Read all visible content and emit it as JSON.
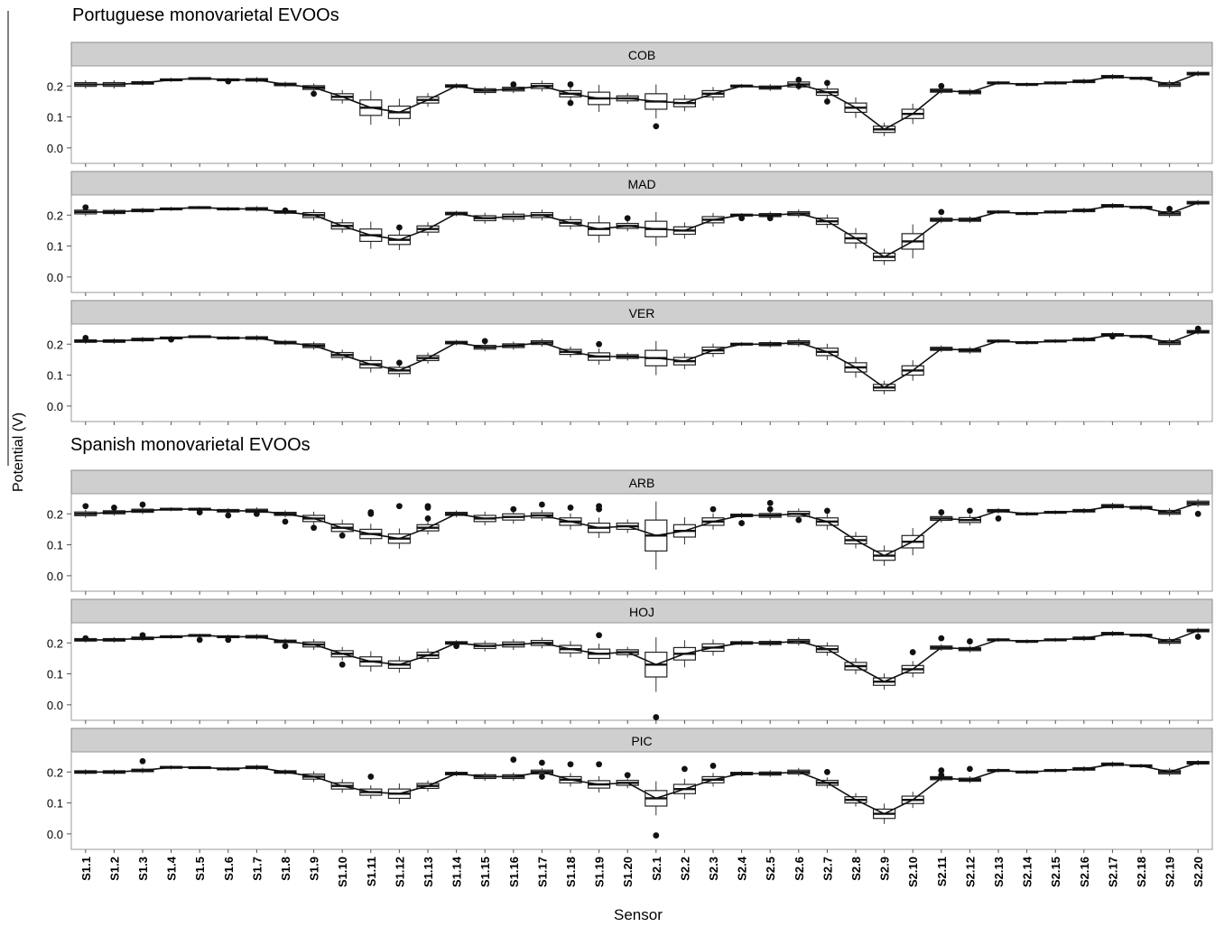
{
  "group_titles": [
    "Portuguese monovarietal EVOOs",
    "Spanish monovarietal EVOOs"
  ],
  "axis": {
    "ylabel": "Potential (V)",
    "xlabel": "Sensor",
    "yticks": [
      0.0,
      0.1,
      0.2
    ],
    "ytick_labels": [
      "0.0",
      "0.1",
      "0.2"
    ]
  },
  "chart_data": {
    "type": "box",
    "xlabel": "Sensor",
    "ylabel": "Potential (V)",
    "ylim": [
      -0.05,
      0.265
    ],
    "categories": [
      "S1.1",
      "S1.2",
      "S1.3",
      "S1.4",
      "S1.5",
      "S1.6",
      "S1.7",
      "S1.8",
      "S1.9",
      "S1.10",
      "S1.11",
      "S1.12",
      "S1.13",
      "S1.14",
      "S1.15",
      "S1.16",
      "S1.17",
      "S1.18",
      "S1.19",
      "S1.20",
      "S2.1",
      "S2.2",
      "S2.3",
      "S2.4",
      "S2.5",
      "S2.6",
      "S2.7",
      "S2.8",
      "S2.9",
      "S2.10",
      "S2.11",
      "S2.12",
      "S2.13",
      "S2.14",
      "S2.15",
      "S2.16",
      "S2.17",
      "S2.18",
      "S2.19",
      "S2.20"
    ],
    "panels": [
      {
        "name": "COB",
        "medians": [
          0.205,
          0.205,
          0.21,
          0.22,
          0.225,
          0.22,
          0.22,
          0.205,
          0.195,
          0.165,
          0.13,
          0.115,
          0.155,
          0.2,
          0.185,
          0.19,
          0.2,
          0.175,
          0.16,
          0.16,
          0.15,
          0.145,
          0.175,
          0.2,
          0.195,
          0.205,
          0.18,
          0.13,
          0.06,
          0.11,
          0.185,
          0.18,
          0.21,
          0.205,
          0.21,
          0.215,
          0.23,
          0.225,
          0.205,
          0.24
        ],
        "spread": [
          0.006,
          0.006,
          0.004,
          0.003,
          0.002,
          0.003,
          0.004,
          0.004,
          0.006,
          0.01,
          0.025,
          0.02,
          0.01,
          0.004,
          0.006,
          0.006,
          0.008,
          0.01,
          0.02,
          0.008,
          0.025,
          0.012,
          0.01,
          0.003,
          0.005,
          0.008,
          0.01,
          0.015,
          0.01,
          0.015,
          0.005,
          0.005,
          0.003,
          0.003,
          0.003,
          0.004,
          0.004,
          0.003,
          0.006,
          0.004
        ],
        "outliers": [
          [
            5,
            0.215
          ],
          [
            8,
            0.175
          ],
          [
            15,
            0.205
          ],
          [
            17,
            0.205
          ],
          [
            17,
            0.145
          ],
          [
            20,
            0.07
          ],
          [
            25,
            0.22
          ],
          [
            25,
            0.2
          ],
          [
            26,
            0.21
          ],
          [
            26,
            0.15
          ],
          [
            30,
            0.2
          ]
        ]
      },
      {
        "name": "MAD",
        "medians": [
          0.21,
          0.21,
          0.215,
          0.22,
          0.225,
          0.22,
          0.22,
          0.21,
          0.2,
          0.165,
          0.135,
          0.12,
          0.155,
          0.205,
          0.19,
          0.195,
          0.2,
          0.175,
          0.155,
          0.165,
          0.155,
          0.15,
          0.185,
          0.2,
          0.2,
          0.205,
          0.18,
          0.125,
          0.065,
          0.115,
          0.185,
          0.185,
          0.21,
          0.205,
          0.21,
          0.215,
          0.23,
          0.225,
          0.205,
          0.24
        ],
        "spread": [
          0.006,
          0.005,
          0.004,
          0.003,
          0.002,
          0.003,
          0.004,
          0.004,
          0.008,
          0.01,
          0.02,
          0.015,
          0.01,
          0.004,
          0.008,
          0.008,
          0.008,
          0.01,
          0.02,
          0.008,
          0.025,
          0.012,
          0.01,
          0.003,
          0.005,
          0.006,
          0.01,
          0.015,
          0.012,
          0.025,
          0.005,
          0.005,
          0.003,
          0.003,
          0.003,
          0.004,
          0.004,
          0.003,
          0.006,
          0.004
        ],
        "outliers": [
          [
            0,
            0.225
          ],
          [
            7,
            0.215
          ],
          [
            11,
            0.16
          ],
          [
            19,
            0.19
          ],
          [
            23,
            0.19
          ],
          [
            24,
            0.19
          ],
          [
            30,
            0.21
          ],
          [
            38,
            0.22
          ]
        ]
      },
      {
        "name": "VER",
        "medians": [
          0.21,
          0.21,
          0.215,
          0.22,
          0.225,
          0.22,
          0.22,
          0.205,
          0.195,
          0.165,
          0.135,
          0.115,
          0.155,
          0.205,
          0.19,
          0.195,
          0.205,
          0.175,
          0.16,
          0.16,
          0.155,
          0.145,
          0.18,
          0.2,
          0.2,
          0.205,
          0.175,
          0.125,
          0.06,
          0.115,
          0.185,
          0.18,
          0.21,
          0.205,
          0.21,
          0.215,
          0.23,
          0.225,
          0.205,
          0.24
        ],
        "spread": [
          0.004,
          0.004,
          0.004,
          0.003,
          0.002,
          0.003,
          0.004,
          0.004,
          0.006,
          0.008,
          0.012,
          0.01,
          0.008,
          0.004,
          0.006,
          0.006,
          0.006,
          0.008,
          0.012,
          0.006,
          0.025,
          0.012,
          0.01,
          0.003,
          0.005,
          0.006,
          0.012,
          0.015,
          0.01,
          0.015,
          0.005,
          0.005,
          0.003,
          0.003,
          0.003,
          0.004,
          0.004,
          0.003,
          0.006,
          0.004
        ],
        "outliers": [
          [
            0,
            0.22
          ],
          [
            3,
            0.215
          ],
          [
            11,
            0.14
          ],
          [
            14,
            0.21
          ],
          [
            18,
            0.2
          ],
          [
            36,
            0.225
          ],
          [
            39,
            0.25
          ]
        ]
      },
      {
        "name": "ARB",
        "medians": [
          0.2,
          0.205,
          0.21,
          0.215,
          0.215,
          0.21,
          0.21,
          0.2,
          0.185,
          0.155,
          0.135,
          0.12,
          0.155,
          0.2,
          0.185,
          0.19,
          0.195,
          0.175,
          0.155,
          0.16,
          0.13,
          0.145,
          0.175,
          0.195,
          0.195,
          0.2,
          0.175,
          0.115,
          0.065,
          0.11,
          0.185,
          0.18,
          0.21,
          0.2,
          0.205,
          0.21,
          0.225,
          0.22,
          0.205,
          0.235
        ],
        "spread": [
          0.006,
          0.005,
          0.005,
          0.003,
          0.003,
          0.004,
          0.005,
          0.005,
          0.01,
          0.012,
          0.015,
          0.015,
          0.01,
          0.005,
          0.01,
          0.01,
          0.008,
          0.012,
          0.015,
          0.01,
          0.05,
          0.02,
          0.012,
          0.004,
          0.006,
          0.008,
          0.012,
          0.012,
          0.015,
          0.02,
          0.006,
          0.008,
          0.004,
          0.003,
          0.003,
          0.004,
          0.005,
          0.004,
          0.006,
          0.006
        ],
        "outliers": [
          [
            0,
            0.225
          ],
          [
            1,
            0.22
          ],
          [
            2,
            0.23
          ],
          [
            4,
            0.205
          ],
          [
            5,
            0.195
          ],
          [
            6,
            0.2
          ],
          [
            7,
            0.175
          ],
          [
            8,
            0.155
          ],
          [
            9,
            0.13
          ],
          [
            10,
            0.205
          ],
          [
            10,
            0.2
          ],
          [
            11,
            0.225
          ],
          [
            12,
            0.225
          ],
          [
            12,
            0.22
          ],
          [
            12,
            0.185
          ],
          [
            15,
            0.215
          ],
          [
            16,
            0.23
          ],
          [
            17,
            0.22
          ],
          [
            18,
            0.225
          ],
          [
            18,
            0.215
          ],
          [
            22,
            0.215
          ],
          [
            23,
            0.17
          ],
          [
            24,
            0.235
          ],
          [
            24,
            0.215
          ],
          [
            25,
            0.18
          ],
          [
            26,
            0.21
          ],
          [
            30,
            0.205
          ],
          [
            31,
            0.21
          ],
          [
            32,
            0.185
          ],
          [
            39,
            0.2
          ]
        ]
      },
      {
        "name": "HOJ",
        "medians": [
          0.21,
          0.21,
          0.215,
          0.22,
          0.225,
          0.22,
          0.22,
          0.205,
          0.195,
          0.165,
          0.14,
          0.13,
          0.16,
          0.2,
          0.19,
          0.195,
          0.2,
          0.18,
          0.165,
          0.17,
          0.13,
          0.165,
          0.185,
          0.2,
          0.2,
          0.205,
          0.18,
          0.125,
          0.075,
          0.115,
          0.185,
          0.18,
          0.21,
          0.205,
          0.21,
          0.215,
          0.23,
          0.225,
          0.205,
          0.24
        ],
        "spread": [
          0.004,
          0.004,
          0.004,
          0.003,
          0.002,
          0.003,
          0.004,
          0.004,
          0.008,
          0.01,
          0.015,
          0.012,
          0.01,
          0.004,
          0.008,
          0.008,
          0.008,
          0.012,
          0.015,
          0.008,
          0.04,
          0.02,
          0.012,
          0.004,
          0.005,
          0.006,
          0.01,
          0.012,
          0.012,
          0.012,
          0.005,
          0.005,
          0.003,
          0.003,
          0.003,
          0.004,
          0.004,
          0.003,
          0.006,
          0.004
        ],
        "outliers": [
          [
            0,
            0.215
          ],
          [
            2,
            0.225
          ],
          [
            4,
            0.21
          ],
          [
            5,
            0.21
          ],
          [
            7,
            0.19
          ],
          [
            9,
            0.13
          ],
          [
            13,
            0.19
          ],
          [
            18,
            0.225
          ],
          [
            20,
            -0.04
          ],
          [
            29,
            0.17
          ],
          [
            30,
            0.215
          ],
          [
            31,
            0.205
          ],
          [
            39,
            0.22
          ]
        ]
      },
      {
        "name": "PIC",
        "medians": [
          0.2,
          0.2,
          0.205,
          0.215,
          0.215,
          0.21,
          0.215,
          0.2,
          0.185,
          0.155,
          0.135,
          0.13,
          0.155,
          0.195,
          0.185,
          0.185,
          0.2,
          0.175,
          0.16,
          0.165,
          0.115,
          0.145,
          0.175,
          0.195,
          0.195,
          0.2,
          0.165,
          0.11,
          0.065,
          0.11,
          0.18,
          0.175,
          0.205,
          0.2,
          0.205,
          0.21,
          0.225,
          0.22,
          0.2,
          0.23
        ],
        "spread": [
          0.004,
          0.004,
          0.004,
          0.003,
          0.002,
          0.003,
          0.004,
          0.004,
          0.008,
          0.01,
          0.01,
          0.015,
          0.008,
          0.004,
          0.006,
          0.006,
          0.006,
          0.01,
          0.012,
          0.008,
          0.025,
          0.015,
          0.01,
          0.004,
          0.005,
          0.006,
          0.008,
          0.01,
          0.015,
          0.012,
          0.005,
          0.005,
          0.003,
          0.003,
          0.003,
          0.004,
          0.004,
          0.003,
          0.006,
          0.004
        ],
        "outliers": [
          [
            2,
            0.235
          ],
          [
            10,
            0.185
          ],
          [
            15,
            0.24
          ],
          [
            16,
            0.23
          ],
          [
            16,
            0.185
          ],
          [
            17,
            0.225
          ],
          [
            18,
            0.225
          ],
          [
            19,
            0.19
          ],
          [
            20,
            -0.005
          ],
          [
            21,
            0.21
          ],
          [
            22,
            0.22
          ],
          [
            26,
            0.2
          ],
          [
            30,
            0.205
          ],
          [
            30,
            0.19
          ],
          [
            31,
            0.21
          ]
        ]
      }
    ]
  }
}
